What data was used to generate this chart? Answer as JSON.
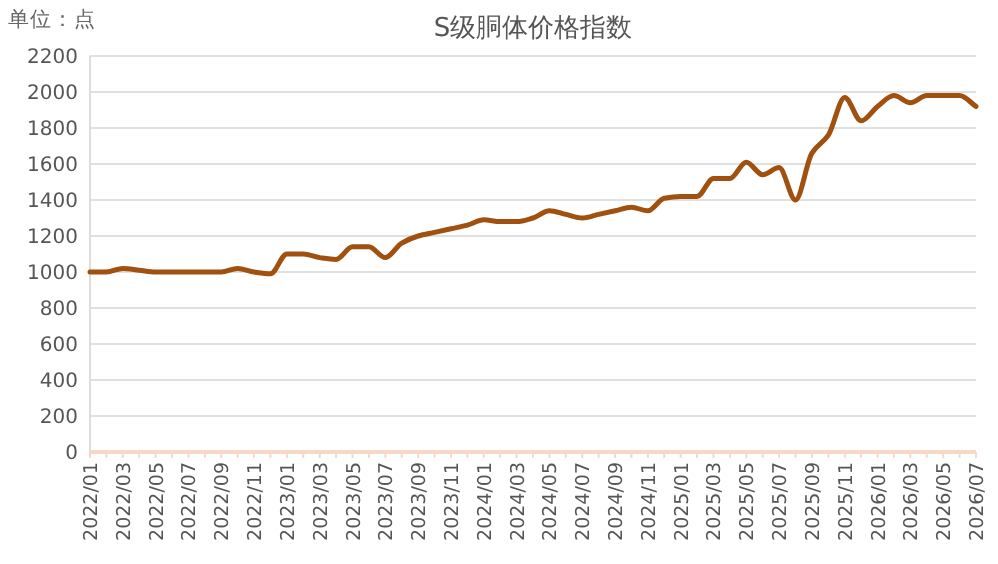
{
  "chart_data": {
    "type": "line",
    "title": "S级胴体价格指数",
    "annotations": [
      "单位：点"
    ],
    "categories": [
      "2022/01",
      null,
      "2022/03",
      null,
      "2022/05",
      null,
      "2022/07",
      null,
      "2022/09",
      null,
      "2022/11",
      null,
      "2023/01",
      null,
      "2023/03",
      null,
      "2023/05",
      null,
      "2023/07",
      null,
      "2023/09",
      null,
      "2023/11",
      null,
      "2024/01",
      null,
      "2024/03",
      null,
      "2024/05",
      null,
      "2024/07",
      null,
      "2024/09",
      null,
      "2024/11",
      null,
      "2025/01",
      null,
      "2025/03",
      null,
      "2025/05",
      null,
      "2025/07",
      null,
      "2025/09",
      null,
      "2025/11",
      null,
      "2026/01",
      null,
      "2026/03",
      null,
      "2026/05",
      null,
      "2026/07"
    ],
    "series": [
      {
        "color": "#a0500f",
        "values": [
          1000,
          1000,
          1020,
          1010,
          1000,
          1000,
          1000,
          1000,
          1000,
          1020,
          1000,
          990,
          1100,
          1100,
          1080,
          1070,
          1140,
          1140,
          1080,
          1160,
          1200,
          1220,
          1240,
          1260,
          1290,
          1280,
          1280,
          1300,
          1340,
          1320,
          1300,
          1320,
          1340,
          1360,
          1340,
          1410,
          1420,
          1420,
          1520,
          1520,
          1610,
          1540,
          1580,
          1400,
          1660,
          1760,
          1970,
          1840,
          1920,
          1980,
          1940,
          1980,
          1980,
          1980,
          1920
        ]
      }
    ],
    "ylim": [
      0,
      2200
    ],
    "yticks": [
      0,
      200,
      400,
      600,
      800,
      1000,
      1200,
      1400,
      1600,
      1800,
      2000,
      2200
    ],
    "grid": "y",
    "marker": "none",
    "line_style": "solid"
  }
}
